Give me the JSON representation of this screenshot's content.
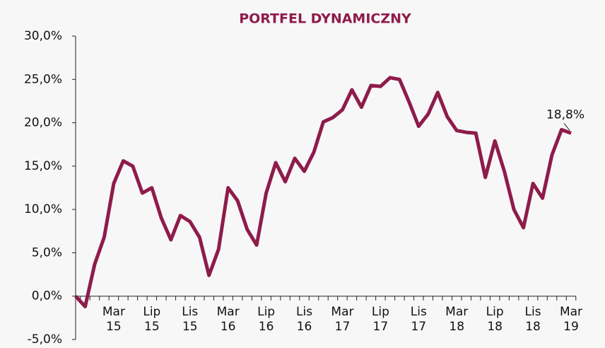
{
  "chart_data": {
    "type": "line",
    "title": "PORTFEL DYNAMICZNY",
    "categories": [
      null,
      null,
      null,
      null,
      "Mar\n15",
      null,
      null,
      null,
      "Lip\n15",
      null,
      null,
      null,
      "Lis\n15",
      null,
      null,
      null,
      "Mar\n16",
      null,
      null,
      null,
      "Lip\n16",
      null,
      null,
      null,
      "Lis\n16",
      null,
      null,
      null,
      "Mar\n17",
      null,
      null,
      null,
      "Lip\n17",
      null,
      null,
      null,
      "Lis\n17",
      null,
      null,
      null,
      "Mar\n18",
      null,
      null,
      null,
      "Lip\n18",
      null,
      null,
      null,
      "Lis\n18",
      null,
      null,
      null,
      "Mar\n19"
    ],
    "series": [
      {
        "color": "#8e1c4b",
        "values": [
          0,
          -1.2,
          3.7,
          6.8,
          13.0,
          15.6,
          15.0,
          11.9,
          12.5,
          9.0,
          6.5,
          9.3,
          8.6,
          6.8,
          2.4,
          5.4,
          12.5,
          11.0,
          7.7,
          5.9,
          11.9,
          15.4,
          13.2,
          15.9,
          14.4,
          16.6,
          20.1,
          20.6,
          21.5,
          23.8,
          21.8,
          24.3,
          24.2,
          25.2,
          25.0,
          22.4,
          19.6,
          21.0,
          23.5,
          20.7,
          19.1,
          18.9,
          18.8,
          13.7,
          17.9,
          14.4,
          10.0,
          7.9,
          13.0,
          11.3,
          16.3,
          19.2,
          18.8
        ],
        "value_labels": [
          null,
          null,
          null,
          null,
          null,
          null,
          null,
          null,
          null,
          null,
          null,
          null,
          null,
          null,
          null,
          null,
          null,
          null,
          null,
          null,
          null,
          null,
          null,
          null,
          null,
          null,
          null,
          null,
          null,
          null,
          null,
          null,
          null,
          null,
          null,
          null,
          null,
          null,
          null,
          null,
          null,
          null,
          null,
          null,
          null,
          null,
          null,
          null,
          null,
          null,
          null,
          null,
          "18,8%"
        ]
      }
    ],
    "ylim": [
      -5,
      30
    ],
    "yticks": [
      {
        "value": -5,
        "label": "-5,0%"
      },
      {
        "value": 0,
        "label": "0,0%"
      },
      {
        "value": 5,
        "label": "5,0%"
      },
      {
        "value": 10,
        "label": "10,0%"
      },
      {
        "value": 15,
        "label": "15,0%"
      },
      {
        "value": 20,
        "label": "20,0%"
      },
      {
        "value": 25,
        "label": "25,0%"
      },
      {
        "value": 30,
        "label": "30,0%"
      }
    ],
    "grid": false
  }
}
